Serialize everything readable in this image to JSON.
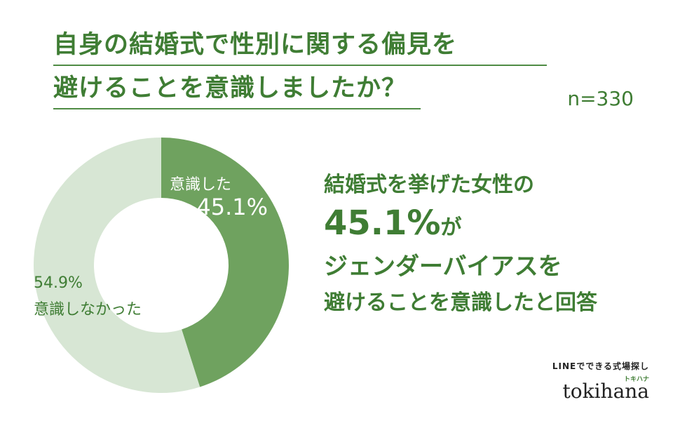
{
  "title": {
    "line1": "自身の結婚式で性別に関する偏見を",
    "line2": "避けることを意識しましたか？"
  },
  "sample": "n=330",
  "summary": {
    "line1": "結婚式を挙げた女性の",
    "highlight_value": "45.1%",
    "highlight_suffix": "が",
    "line3": "ジェンダーバイアスを",
    "line4": "避けることを意識したと回答"
  },
  "brand": {
    "tagline": "LINEでできる式場探し",
    "kana": "トキハナ",
    "logo": "tokihana"
  },
  "chart_data": {
    "type": "pie",
    "donut": true,
    "slices": [
      {
        "name": "意識した",
        "value": 45.1,
        "label": "45.1%",
        "color": "#6fa25f"
      },
      {
        "name": "意識しなかった",
        "value": 54.9,
        "label": "54.9%",
        "color": "#d7e6d4"
      }
    ],
    "start_position": "top",
    "direction": "clockwise"
  },
  "colors": {
    "accent": "#3f7d34",
    "slice_dark": "#6fa25f",
    "slice_light": "#d7e6d4"
  }
}
